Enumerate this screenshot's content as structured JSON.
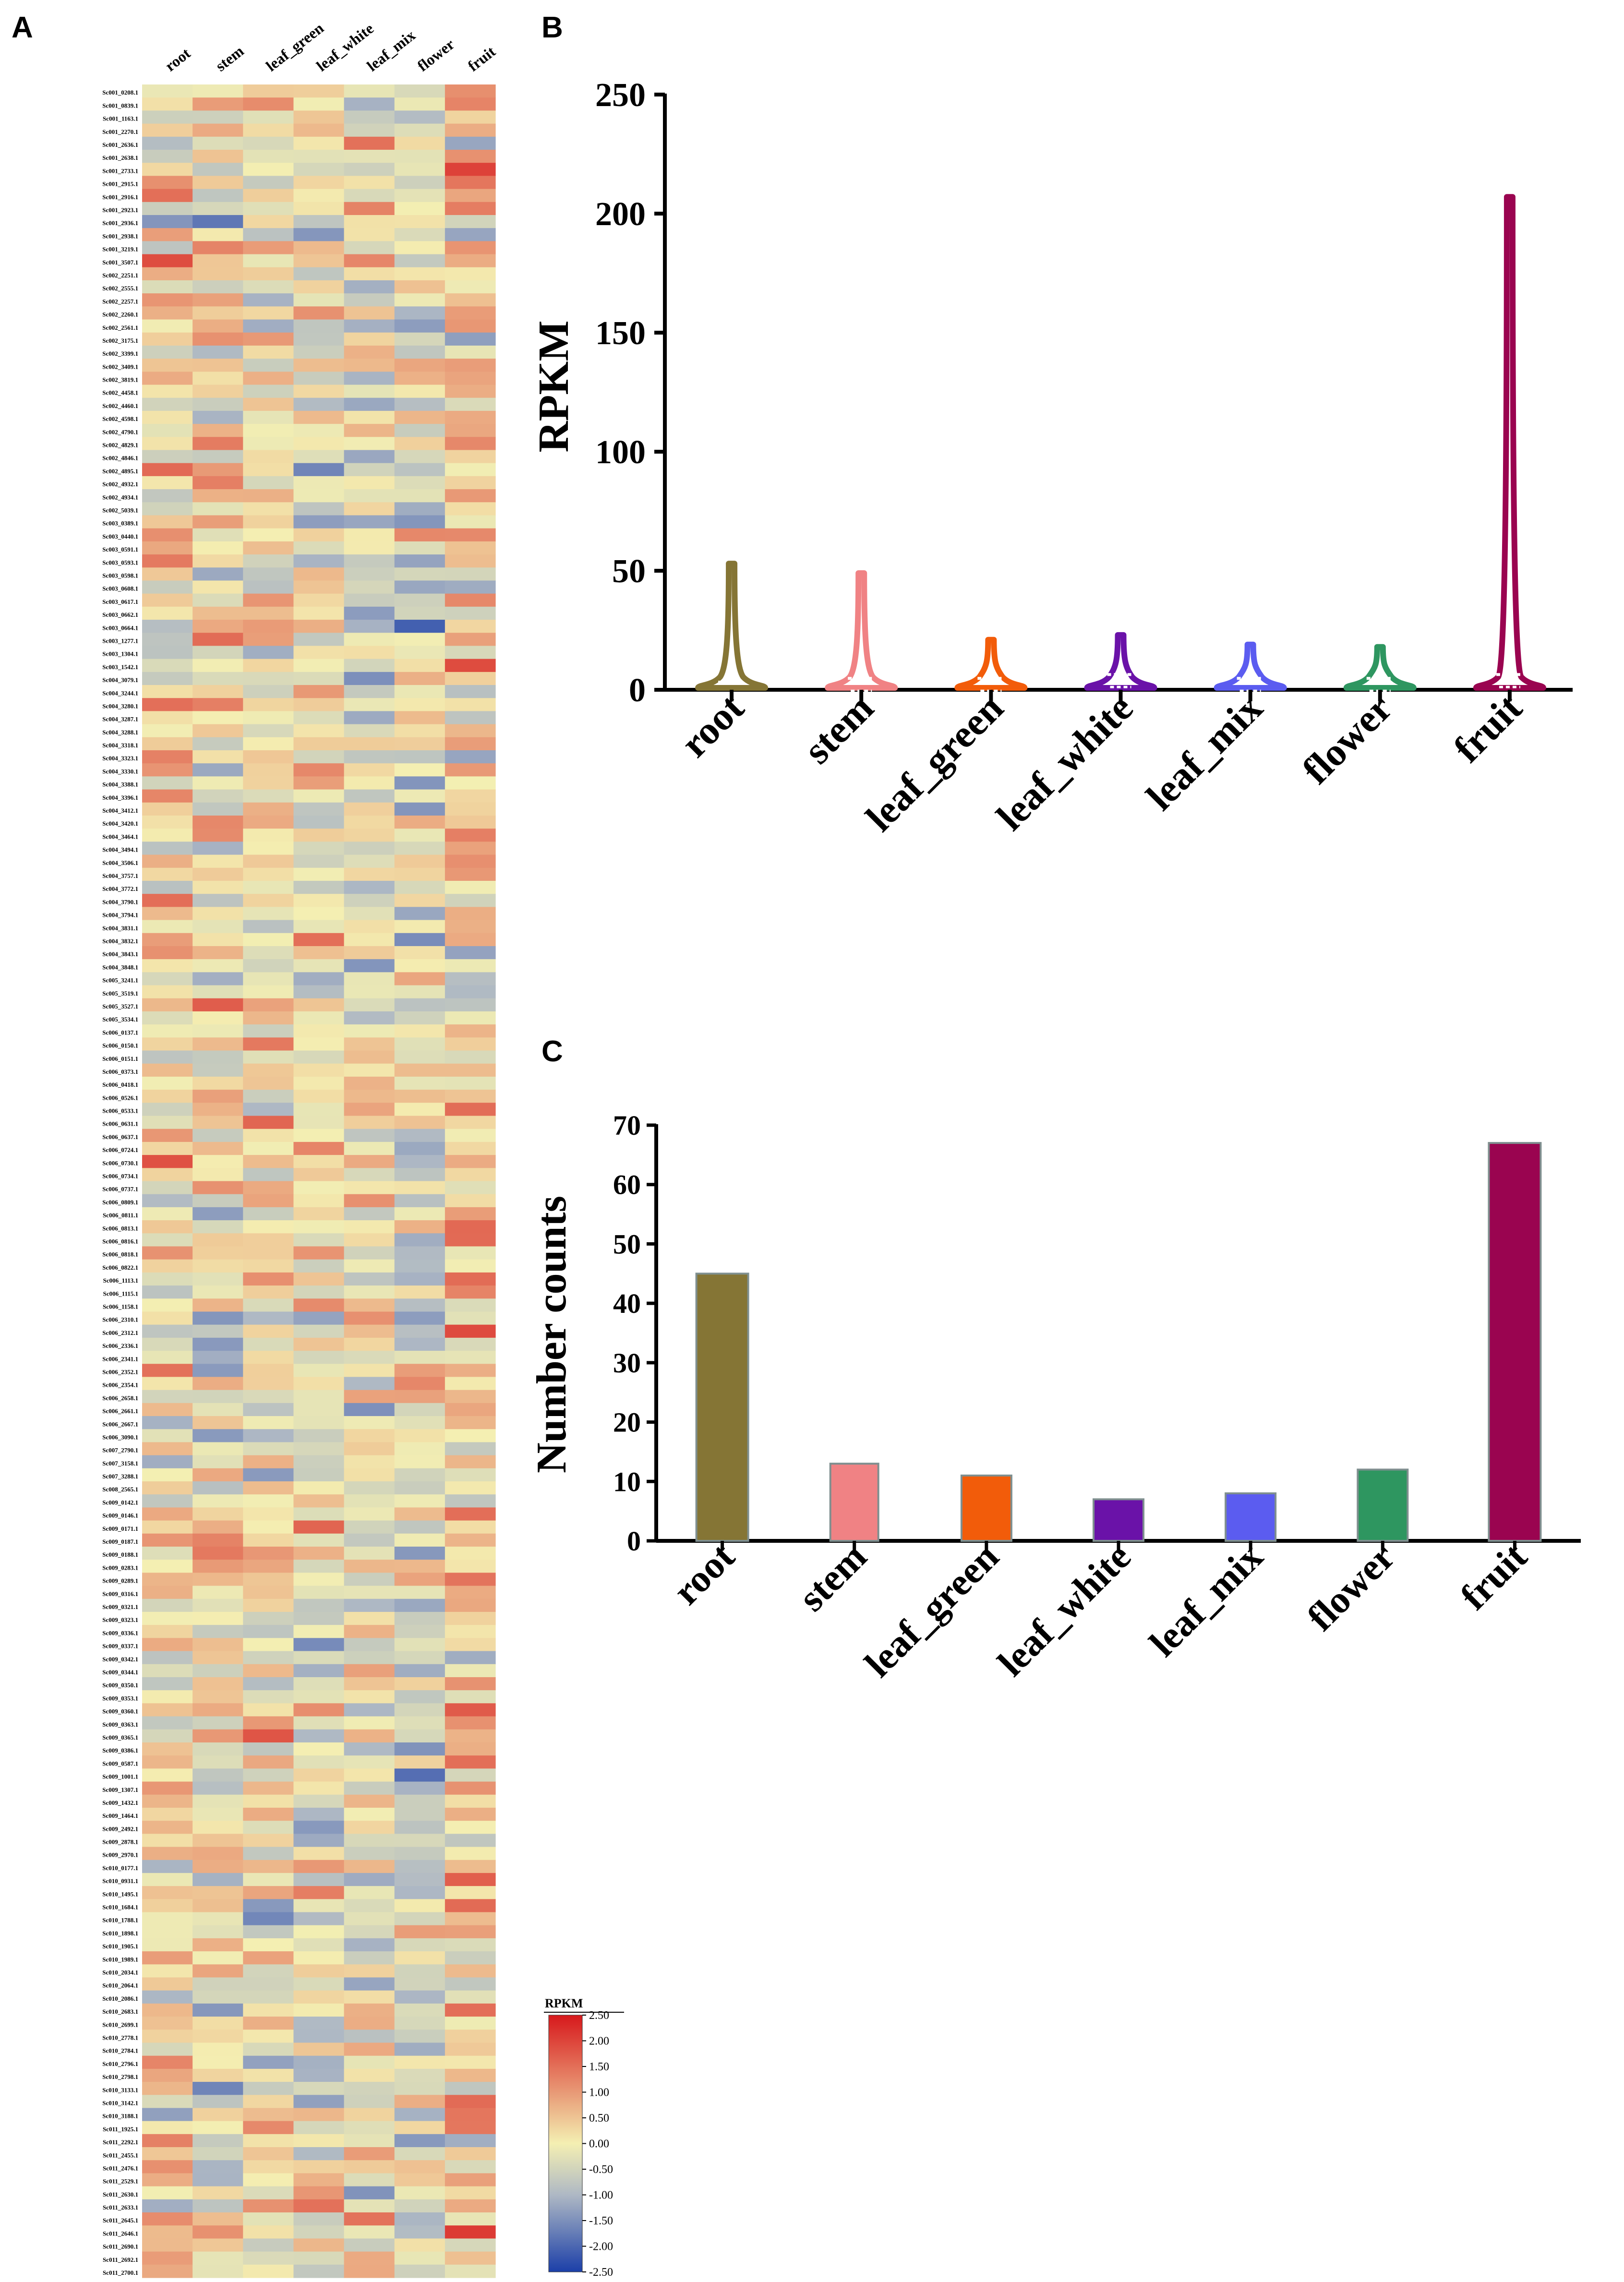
{
  "panels": {
    "a": {
      "letter": "A"
    },
    "b": {
      "letter": "B"
    },
    "c": {
      "letter": "C"
    }
  },
  "colors": {
    "root": "#857535",
    "stem": "#F08284",
    "leaf_green": "#F25C0A",
    "leaf_white": "#6A12A8",
    "leaf_mix": "#5B5CF0",
    "flower": "#2E9660",
    "fruit": "#9A0450",
    "heat_high": "#D7191C",
    "heat_mid": "#F4EFB2",
    "heat_low": "#1B3FA8"
  },
  "chart_data": [
    {
      "type": "heatmap",
      "id": "A",
      "columns": [
        "root",
        "stem",
        "leaf_green",
        "leaf_white",
        "leaf_mix",
        "flower",
        "fruit"
      ],
      "rows": [
        "Sc001_0208.1",
        "Sc001_0839.1",
        "Sc001_1163.1",
        "Sc001_2270.1",
        "Sc001_2636.1",
        "Sc001_2638.1",
        "Sc001_2733.1",
        "Sc001_2915.1",
        "Sc001_2916.1",
        "Sc001_2923.1",
        "Sc001_2936.1",
        "Sc001_2938.1",
        "Sc001_3219.1",
        "Sc001_3507.1",
        "Sc002_2251.1",
        "Sc002_2555.1",
        "Sc002_2257.1",
        "Sc002_2260.1",
        "Sc002_2561.1",
        "Sc002_3175.1",
        "Sc002_3399.1",
        "Sc002_3409.1",
        "Sc002_3819.1",
        "Sc002_4458.1",
        "Sc002_4460.1",
        "Sc002_4598.1",
        "Sc002_4790.1",
        "Sc002_4829.1",
        "Sc002_4846.1",
        "Sc002_4895.1",
        "Sc002_4932.1",
        "Sc002_4934.1",
        "Sc002_5039.1",
        "Sc003_0389.1",
        "Sc003_0440.1",
        "Sc003_0591.1",
        "Sc003_0593.1",
        "Sc003_0598.1",
        "Sc003_0608.1",
        "Sc003_0617.1",
        "Sc003_0662.1",
        "Sc003_0664.1",
        "Sc003_1277.1",
        "Sc003_1304.1",
        "Sc003_1542.1",
        "Sc004_3079.1",
        "Sc004_3244.1",
        "Sc004_3280.1",
        "Sc004_3287.1",
        "Sc004_3288.1",
        "Sc004_3318.1",
        "Sc004_3323.1",
        "Sc004_3330.1",
        "Sc004_3388.1",
        "Sc004_3396.1",
        "Sc004_3412.1",
        "Sc004_3420.1",
        "Sc004_3464.1",
        "Sc004_3494.1",
        "Sc004_3506.1",
        "Sc004_3757.1",
        "Sc004_3772.1",
        "Sc004_3790.1",
        "Sc004_3794.1",
        "Sc004_3831.1",
        "Sc004_3832.1",
        "Sc004_3843.1",
        "Sc004_3848.1",
        "Sc005_3241.1",
        "Sc005_3519.1",
        "Sc005_3527.1",
        "Sc005_3534.1",
        "Sc006_0137.1",
        "Sc006_0150.1",
        "Sc006_0151.1",
        "Sc006_0373.1",
        "Sc006_0418.1",
        "Sc006_0526.1",
        "Sc006_0533.1",
        "Sc006_0631.1",
        "Sc006_0637.1",
        "Sc006_0724.1",
        "Sc006_0730.1",
        "Sc006_0734.1",
        "Sc006_0737.1",
        "Sc006_0809.1",
        "Sc006_0811.1",
        "Sc006_0813.1",
        "Sc006_0816.1",
        "Sc006_0818.1",
        "Sc006_0822.1",
        "Sc006_1113.1",
        "Sc006_1115.1",
        "Sc006_1158.1",
        "Sc006_2310.1",
        "Sc006_2312.1",
        "Sc006_2336.1",
        "Sc006_2341.1",
        "Sc006_2352.1",
        "Sc006_2354.1",
        "Sc006_2658.1",
        "Sc006_2661.1",
        "Sc006_2667.1",
        "Sc006_3090.1",
        "Sc007_2790.1",
        "Sc007_3158.1",
        "Sc007_3288.1",
        "Sc008_2565.1",
        "Sc009_0142.1",
        "Sc009_0146.1",
        "Sc009_0171.1",
        "Sc009_0187.1",
        "Sc009_0188.1",
        "Sc009_0283.1",
        "Sc009_0289.1",
        "Sc009_0316.1",
        "Sc009_0321.1",
        "Sc009_0323.1",
        "Sc009_0336.1",
        "Sc009_0337.1",
        "Sc009_0342.1",
        "Sc009_0344.1",
        "Sc009_0350.1",
        "Sc009_0353.1",
        "Sc009_0360.1",
        "Sc009_0363.1",
        "Sc009_0365.1",
        "Sc009_0386.1",
        "Sc009_0587.1",
        "Sc009_1001.1",
        "Sc009_1307.1",
        "Sc009_1432.1",
        "Sc009_1464.1",
        "Sc009_2492.1",
        "Sc009_2878.1",
        "Sc009_2970.1",
        "Sc010_0177.1",
        "Sc010_0931.1",
        "Sc010_1495.1",
        "Sc010_1684.1",
        "Sc010_1788.1",
        "Sc010_1898.1",
        "Sc010_1905.1",
        "Sc010_1989.1",
        "Sc010_2034.1",
        "Sc010_2064.1",
        "Sc010_2086.1",
        "Sc010_2683.1",
        "Sc010_2699.1",
        "Sc010_2778.1",
        "Sc010_2784.1",
        "Sc010_2796.1",
        "Sc010_2798.1",
        "Sc010_3133.1",
        "Sc010_3142.1",
        "Sc010_3188.1",
        "Sc011_1925.1",
        "Sc011_2292.1",
        "Sc011_2455.1",
        "Sc011_2476.1",
        "Sc011_2529.1",
        "Sc011_2630.1",
        "Sc011_2633.1",
        "Sc011_2645.1",
        "Sc011_2646.1",
        "Sc011_2690.1",
        "Sc011_2692.1",
        "Sc011_2700.1"
      ],
      "legend": {
        "title": "RPKM",
        "min": -2.5,
        "max": 2.5,
        "ticks": [
          "2.50",
          "2.00",
          "1.50",
          "1.00",
          "0.50",
          "0.00",
          "-0.50",
          "-1.00",
          "-1.50",
          "-2.00",
          "-2.50"
        ]
      }
    },
    {
      "type": "violin",
      "id": "B",
      "ylabel": "RPKM",
      "ylim": [
        0,
        250
      ],
      "yticks": [
        0,
        50,
        100,
        150,
        200,
        250
      ],
      "categories": [
        "root",
        "stem",
        "leaf_green",
        "leaf_white",
        "leaf_mix",
        "flower",
        "fruit"
      ],
      "max_values": [
        53,
        49,
        21,
        23,
        19,
        18,
        207
      ],
      "median_values": [
        2,
        3,
        3,
        4,
        3,
        3,
        4
      ]
    },
    {
      "type": "bar",
      "id": "C",
      "ylabel": "Number counts",
      "ylim": [
        0,
        70
      ],
      "yticks": [
        0,
        10,
        20,
        30,
        40,
        50,
        60,
        70
      ],
      "categories": [
        "root",
        "stem",
        "leaf_green",
        "leaf_white",
        "leaf_mix",
        "flower",
        "fruit"
      ],
      "values": [
        45,
        13,
        11,
        7,
        8,
        12,
        67
      ]
    }
  ]
}
